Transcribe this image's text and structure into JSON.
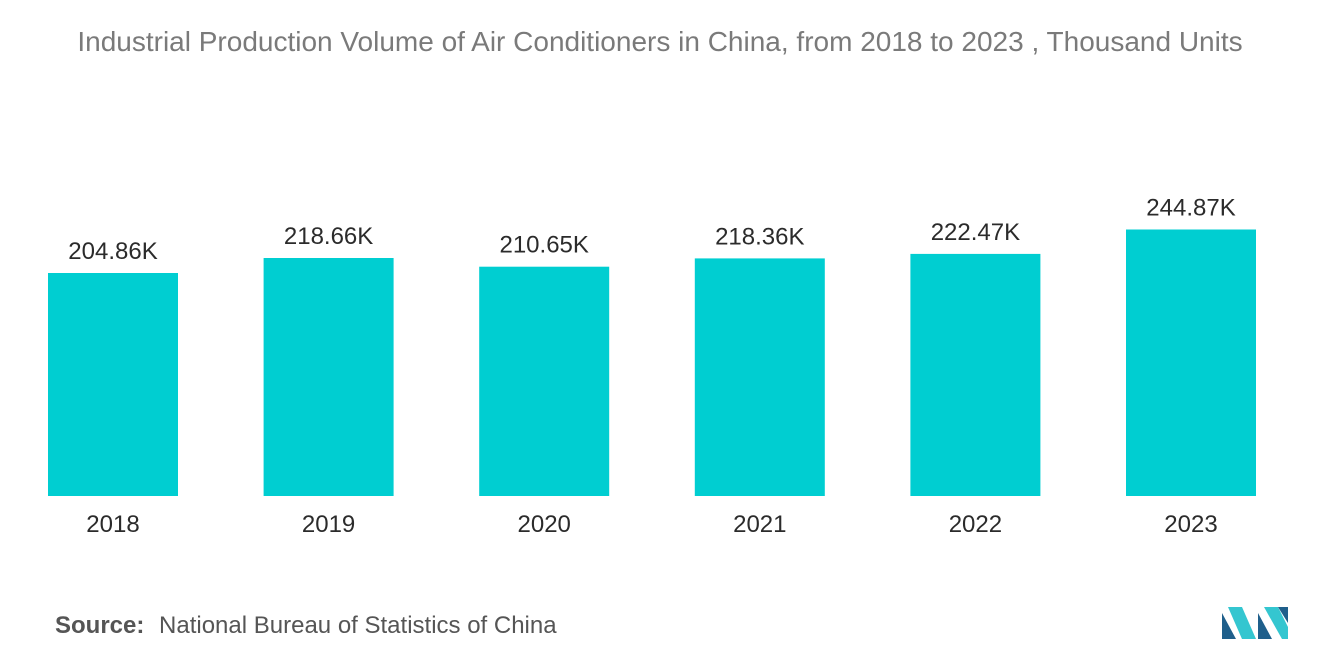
{
  "chart_data": {
    "type": "bar",
    "title": "Industrial Production Volume of Air Conditioners in China, from 2018 to 2023 , Thousand Units",
    "categories": [
      "2018",
      "2019",
      "2020",
      "2021",
      "2022",
      "2023"
    ],
    "values": [
      204.86,
      218.66,
      210.65,
      218.36,
      222.47,
      244.87
    ],
    "data_labels": [
      "204.86K",
      "218.66K",
      "210.65K",
      "218.36K",
      "222.47K",
      "244.87K"
    ],
    "xlabel": "",
    "ylabel": "",
    "ylim": [
      0,
      250
    ],
    "grid": false,
    "legend": "none",
    "bar_color": "#00CED1"
  },
  "source": {
    "prefix": "Source:",
    "text": "National Bureau of Statistics of China"
  },
  "colors": {
    "bar": "#00CED1",
    "logo_dark": "#1f5f8b",
    "logo_light": "#34c6d0"
  }
}
